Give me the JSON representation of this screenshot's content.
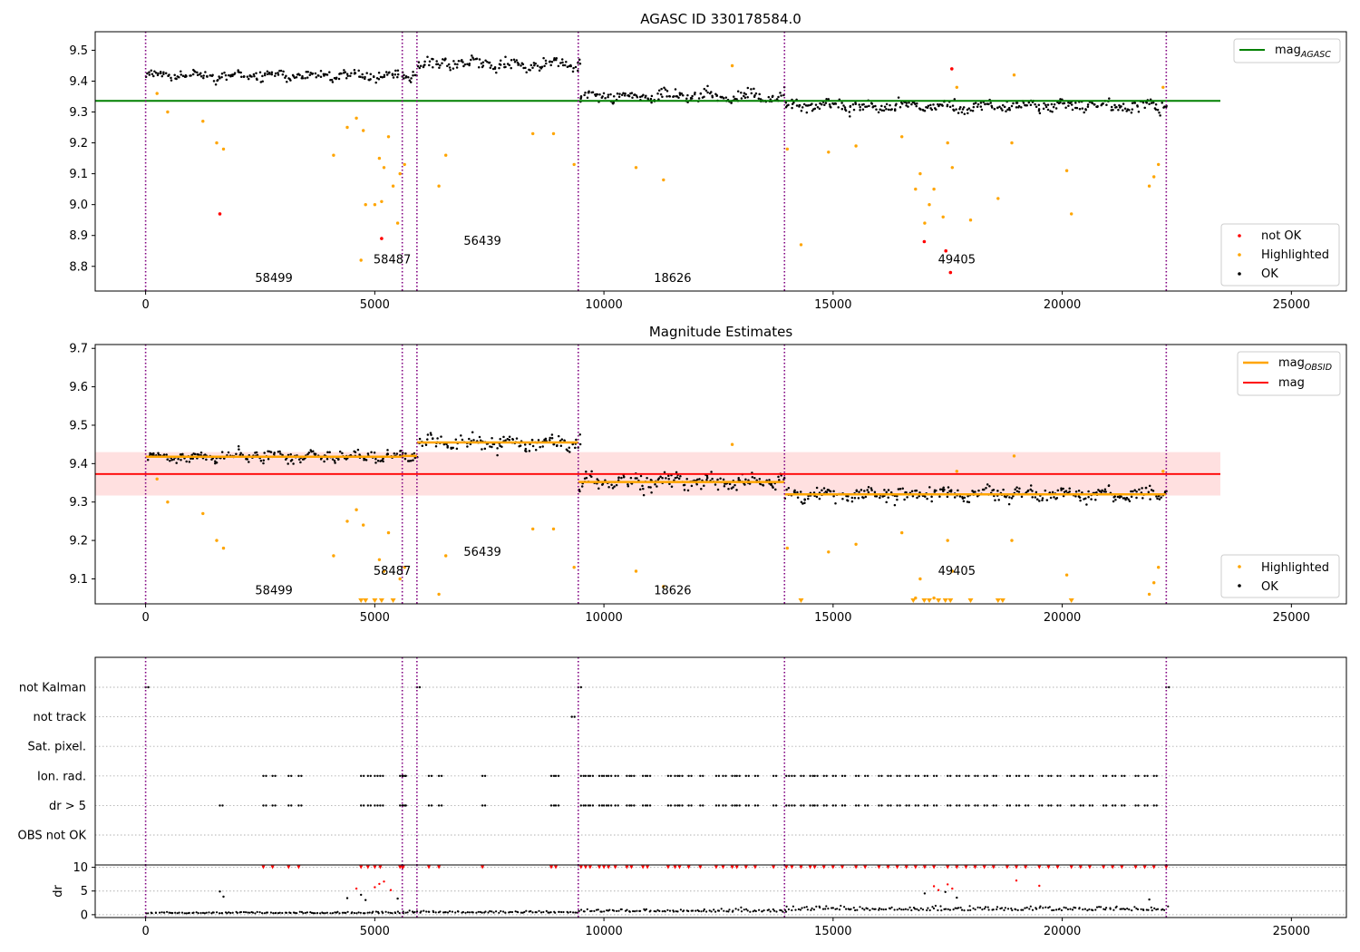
{
  "chart_data": [
    {
      "type": "scatter",
      "title": "AGASC ID 330178584.0",
      "xlim": [
        -1100,
        26200
      ],
      "ylim": [
        8.72,
        9.56
      ],
      "xticks": [
        0,
        5000,
        10000,
        15000,
        20000,
        25000
      ],
      "yticks": [
        8.8,
        8.9,
        9.0,
        9.1,
        9.2,
        9.3,
        9.4,
        9.5
      ],
      "observation_boundaries": [
        0,
        5600,
        5920,
        9440,
        13940,
        22270
      ],
      "observations": [
        {
          "obsid": "58499",
          "x_range": [
            0,
            5600
          ],
          "mean_mag": 9.418,
          "spread": 0.018
        },
        {
          "obsid": "58487",
          "x_range": [
            5600,
            5920
          ],
          "mean_mag": 9.42,
          "spread": 0.02
        },
        {
          "obsid": "56439",
          "x_range": [
            5920,
            9440
          ],
          "mean_mag": 9.455,
          "spread": 0.022
        },
        {
          "obsid": "18626",
          "x_range": [
            9440,
            13940
          ],
          "mean_mag": 9.352,
          "spread": 0.025
        },
        {
          "obsid": "49405",
          "x_range": [
            13940,
            22270
          ],
          "mean_mag": 9.32,
          "spread": 0.022
        }
      ],
      "obsid_labels": [
        {
          "text": "58499",
          "x": 2800,
          "y": 8.75
        },
        {
          "text": "58487",
          "x": 5380,
          "y": 8.81
        },
        {
          "text": "56439",
          "x": 7350,
          "y": 8.87
        },
        {
          "text": "18626",
          "x": 11500,
          "y": 8.75
        },
        {
          "text": "49405",
          "x": 17700,
          "y": 8.81
        }
      ],
      "lines": [
        {
          "name": "mag$_{AGASC}$",
          "y": 9.336,
          "x_range": [
            -1100,
            23450
          ],
          "color": "#008000"
        }
      ],
      "highlighted_points": [
        [
          250,
          9.36
        ],
        [
          480,
          9.3
        ],
        [
          1250,
          9.27
        ],
        [
          1550,
          9.2
        ],
        [
          1700,
          9.18
        ],
        [
          4100,
          9.16
        ],
        [
          4400,
          9.25
        ],
        [
          4600,
          9.28
        ],
        [
          4750,
          9.24
        ],
        [
          4700,
          8.82
        ],
        [
          4800,
          9.0
        ],
        [
          5000,
          9.0
        ],
        [
          5100,
          9.15
        ],
        [
          5150,
          9.01
        ],
        [
          5200,
          9.12
        ],
        [
          5300,
          9.22
        ],
        [
          5400,
          9.06
        ],
        [
          5500,
          8.94
        ],
        [
          5550,
          9.1
        ],
        [
          5650,
          9.13
        ],
        [
          6400,
          9.06
        ],
        [
          6550,
          9.16
        ],
        [
          8450,
          9.23
        ],
        [
          8900,
          9.23
        ],
        [
          9350,
          9.13
        ],
        [
          10700,
          9.12
        ],
        [
          11300,
          9.08
        ],
        [
          12800,
          9.45
        ],
        [
          14000,
          9.18
        ],
        [
          14300,
          8.87
        ],
        [
          14900,
          9.17
        ],
        [
          15500,
          9.19
        ],
        [
          16800,
          9.05
        ],
        [
          17000,
          8.94
        ],
        [
          17200,
          9.05
        ],
        [
          17400,
          8.96
        ],
        [
          17500,
          9.2
        ],
        [
          17600,
          9.12
        ],
        [
          17700,
          9.38
        ],
        [
          18000,
          8.95
        ],
        [
          18600,
          9.02
        ],
        [
          18900,
          9.2
        ],
        [
          18950,
          9.42
        ],
        [
          20100,
          9.11
        ],
        [
          20200,
          8.97
        ],
        [
          21900,
          9.06
        ],
        [
          22000,
          9.09
        ],
        [
          22100,
          9.13
        ],
        [
          22200,
          9.38
        ],
        [
          16500,
          9.22
        ],
        [
          16900,
          9.1
        ],
        [
          17100,
          9.0
        ]
      ],
      "not_ok_points": [
        [
          1620,
          8.97
        ],
        [
          5150,
          8.89
        ],
        [
          16990,
          8.88
        ],
        [
          17460,
          8.85
        ],
        [
          17590,
          9.44
        ],
        [
          17560,
          8.78
        ]
      ],
      "legend": [
        {
          "label": "mag$_{AGASC}$",
          "kind": "line",
          "color": "#008000",
          "loc": "upper right"
        },
        {
          "label": "not OK",
          "kind": "point",
          "color": "#ff0000",
          "loc": "lower right"
        },
        {
          "label": "Highlighted",
          "kind": "point",
          "color": "#ffa500",
          "loc": "lower right"
        },
        {
          "label": "OK",
          "kind": "point",
          "color": "#000000",
          "loc": "lower right"
        }
      ]
    },
    {
      "type": "scatter",
      "title": "Magnitude Estimates",
      "xlim": [
        -1100,
        26200
      ],
      "ylim": [
        9.035,
        9.71
      ],
      "xticks": [
        0,
        5000,
        10000,
        15000,
        20000,
        25000
      ],
      "yticks": [
        9.1,
        9.2,
        9.3,
        9.4,
        9.5,
        9.6,
        9.7
      ],
      "observation_boundaries": [
        0,
        5600,
        5920,
        9440,
        13940,
        22270
      ],
      "observation_mags": [
        {
          "x_range": [
            0,
            5600
          ],
          "mag_obsid": 9.418
        },
        {
          "x_range": [
            5600,
            5920
          ],
          "mag_obsid": 9.42
        },
        {
          "x_range": [
            5920,
            9440
          ],
          "mag_obsid": 9.455
        },
        {
          "x_range": [
            9440,
            13940
          ],
          "mag_obsid": 9.352
        },
        {
          "x_range": [
            13940,
            22270
          ],
          "mag_obsid": 9.32
        }
      ],
      "mag": {
        "y": 9.373,
        "band": [
          9.317,
          9.43
        ],
        "x_range": [
          -1100,
          23450
        ],
        "color": "#ff0000",
        "band_color": "#ffe0e0"
      },
      "obsid_labels": [
        {
          "text": "58499",
          "x": 2800,
          "y": 9.06
        },
        {
          "text": "58487",
          "x": 5380,
          "y": 9.11
        },
        {
          "text": "56439",
          "x": 7350,
          "y": 9.16
        },
        {
          "text": "18626",
          "x": 11500,
          "y": 9.06
        },
        {
          "text": "49405",
          "x": 17700,
          "y": 9.11
        }
      ],
      "highlighted_points": [
        [
          250,
          9.36
        ],
        [
          480,
          9.3
        ],
        [
          1250,
          9.27
        ],
        [
          1550,
          9.2
        ],
        [
          1700,
          9.18
        ],
        [
          4100,
          9.16
        ],
        [
          4400,
          9.25
        ],
        [
          4600,
          9.28
        ],
        [
          4750,
          9.24
        ],
        [
          5100,
          9.15
        ],
        [
          5200,
          9.12
        ],
        [
          5300,
          9.22
        ],
        [
          5550,
          9.1
        ],
        [
          5650,
          9.13
        ],
        [
          6400,
          9.06
        ],
        [
          6550,
          9.16
        ],
        [
          8450,
          9.23
        ],
        [
          8900,
          9.23
        ],
        [
          9350,
          9.13
        ],
        [
          10700,
          9.12
        ],
        [
          11300,
          9.08
        ],
        [
          12800,
          9.45
        ],
        [
          14000,
          9.18
        ],
        [
          14900,
          9.17
        ],
        [
          15500,
          9.19
        ],
        [
          16800,
          9.05
        ],
        [
          17200,
          9.05
        ],
        [
          17500,
          9.2
        ],
        [
          17600,
          9.12
        ],
        [
          17700,
          9.38
        ],
        [
          18900,
          9.2
        ],
        [
          18950,
          9.42
        ],
        [
          20100,
          9.11
        ],
        [
          21900,
          9.06
        ],
        [
          22000,
          9.09
        ],
        [
          22100,
          9.13
        ],
        [
          22200,
          9.38
        ],
        [
          16500,
          9.22
        ],
        [
          16900,
          9.1
        ]
      ],
      "clipped_highlighted_x": [
        4700,
        4800,
        5000,
        5150,
        5400,
        14300,
        16750,
        16990,
        17100,
        17300,
        17450,
        17560,
        18000,
        18600,
        18700,
        20200
      ],
      "legend": [
        {
          "label": "mag$_{OBSID}$",
          "kind": "line",
          "color": "#ffa500",
          "loc": "upper right"
        },
        {
          "label": "mag",
          "kind": "line",
          "color": "#ff0000",
          "loc": "upper right"
        },
        {
          "label": "Highlighted",
          "kind": "point",
          "color": "#ffa500",
          "loc": "lower right"
        },
        {
          "label": "OK",
          "kind": "point",
          "color": "#000000",
          "loc": "lower right"
        }
      ]
    },
    {
      "type": "scatter",
      "title": "",
      "xlim": [
        -1100,
        26200
      ],
      "xticks": [
        0,
        5000,
        10000,
        15000,
        20000,
        25000
      ],
      "categories": [
        "not Kalman",
        "not track",
        "Sat. pixel.",
        "Ion. rad.",
        "dr > 5",
        "OBS not OK"
      ],
      "flag_events": {
        "not Kalman": [
          0,
          5920,
          9440,
          22270
        ],
        "not track": [
          9300
        ],
        "Sat. pixel.": [],
        "Ion. rad.": [
          2570,
          2770,
          3120,
          3340,
          4700,
          4850,
          5000,
          5120,
          5550,
          5600,
          5620,
          6180,
          6400,
          7350,
          8850,
          8950,
          9500,
          9600,
          9700,
          9900,
          10000,
          10100,
          10250,
          10500,
          10600,
          10850,
          10950,
          11400,
          11550,
          11650,
          11850,
          12100,
          12450,
          12600,
          12800,
          12900,
          13100,
          13300,
          13700,
          13980,
          14100,
          14300,
          14500,
          14600,
          14800,
          15000,
          15200,
          15500,
          15700,
          16000,
          16200,
          16400,
          16600,
          16800,
          17000,
          17200,
          17500,
          17700,
          17900,
          18100,
          18300,
          18500,
          18800,
          19000,
          19200,
          19500,
          19700,
          19900,
          20200,
          20400,
          20600,
          20900,
          21100,
          21300,
          21600,
          21800,
          22000
        ],
        "dr > 5": [
          1620,
          2570,
          2770,
          3120,
          3340,
          4700,
          4850,
          5000,
          5120,
          5550,
          5600,
          5620,
          6180,
          6400,
          7350,
          8850,
          8950,
          9500,
          9600,
          9700,
          9900,
          10000,
          10100,
          10250,
          10500,
          10600,
          10850,
          10950,
          11400,
          11550,
          11650,
          11850,
          12100,
          12450,
          12600,
          12800,
          12900,
          13100,
          13300,
          13700,
          13980,
          14100,
          14300,
          14500,
          14600,
          14800,
          15000,
          15200,
          15500,
          15700,
          16000,
          16200,
          16400,
          16600,
          16800,
          17000,
          17200,
          17500,
          17700,
          17900,
          18100,
          18300,
          18500,
          18800,
          19000,
          19200,
          19500,
          19700,
          19900,
          20200,
          20400,
          20600,
          20900,
          21100,
          21300,
          21600,
          21800,
          22000
        ],
        "OBS not OK": []
      },
      "observation_boundaries": [
        0,
        5600,
        5920,
        9440,
        13940,
        22270
      ]
    },
    {
      "type": "scatter",
      "title": "",
      "ylabel": "dr",
      "xlim": [
        -1100,
        26200
      ],
      "ylim": [
        -0.6,
        10.5
      ],
      "xticks": [
        0,
        5000,
        10000,
        15000,
        20000,
        25000
      ],
      "yticks": [
        0,
        5,
        10
      ],
      "threshold": 5,
      "clip": 10,
      "ok_baseline": [
        {
          "x_range": [
            0,
            5600
          ],
          "dr": 0.3
        },
        {
          "x_range": [
            5600,
            9440
          ],
          "dr": 0.4
        },
        {
          "x_range": [
            9440,
            13940
          ],
          "dr": 0.6
        },
        {
          "x_range": [
            13940,
            22270
          ],
          "dr": 0.9
        }
      ],
      "flagged_points": [
        [
          1620,
          4.9
        ],
        [
          1700,
          3.8
        ],
        [
          4400,
          3.5
        ],
        [
          4600,
          5.5
        ],
        [
          4700,
          4.2
        ],
        [
          4800,
          3.1
        ],
        [
          5000,
          5.8
        ],
        [
          5100,
          6.5
        ],
        [
          5200,
          7.0
        ],
        [
          5350,
          5.2
        ],
        [
          5500,
          3.4
        ],
        [
          17000,
          4.5
        ],
        [
          17200,
          6.0
        ],
        [
          17300,
          5.2
        ],
        [
          17450,
          4.8
        ],
        [
          17500,
          6.4
        ],
        [
          17600,
          5.5
        ],
        [
          17700,
          3.6
        ],
        [
          19000,
          7.2
        ],
        [
          19500,
          6.1
        ],
        [
          21900,
          3.2
        ]
      ],
      "clipped_x": [
        2570,
        2770,
        3120,
        3340,
        4700,
        4850,
        5000,
        5120,
        5550,
        5600,
        5620,
        6180,
        6400,
        7350,
        8850,
        8950,
        9500,
        9600,
        9700,
        9900,
        10000,
        10100,
        10250,
        10500,
        10600,
        10850,
        10950,
        11400,
        11550,
        11650,
        11850,
        12100,
        12450,
        12600,
        12800,
        12900,
        13100,
        13300,
        13700,
        13980,
        14100,
        14300,
        14500,
        14600,
        14800,
        15000,
        15200,
        15500,
        15700,
        16000,
        16200,
        16400,
        16600,
        16800,
        17000,
        17200,
        17500,
        17700,
        17900,
        18100,
        18300,
        18500,
        18800,
        19000,
        19200,
        19500,
        19700,
        19900,
        20200,
        20400,
        20600,
        20900,
        21100,
        21300,
        21600,
        21800,
        22000,
        22270
      ],
      "observation_boundaries": [
        0,
        5600,
        5920,
        9440,
        13940,
        22270
      ]
    }
  ],
  "colors": {
    "ok": "#000000",
    "highlighted": "#ffa500",
    "not_ok": "#ff0000",
    "boundary": "#800080",
    "agasc_line": "#008000",
    "obsid_line": "#ffa500",
    "mag_line": "#ff0000",
    "band": "#ffe0e0",
    "grid": "#b0b0b0"
  }
}
